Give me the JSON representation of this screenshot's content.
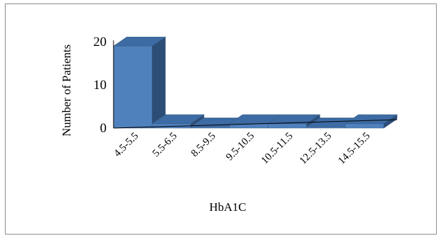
{
  "chart_data": {
    "type": "bar",
    "style": "3d-column",
    "categories": [
      "4.5-5.5",
      "5.5-6.5",
      "8.5-9.5",
      "9.5-10.5",
      "10.5-11.5",
      "12.5-13.5",
      "14.5-15.5"
    ],
    "values": [
      19,
      1,
      0,
      1,
      1,
      0,
      1
    ],
    "title": "",
    "xlabel": "HbA1C",
    "ylabel": "Number of Patients",
    "ylim": [
      0,
      20
    ],
    "yticks": [
      0,
      10,
      20
    ],
    "grid": false,
    "legend": "none",
    "colors": {
      "front": "#4f81bd",
      "side": "#2c4d75",
      "top": "#3d6ba3",
      "edge": "#385d8a",
      "axis": "#000000",
      "border": "#8c8c8c"
    }
  }
}
